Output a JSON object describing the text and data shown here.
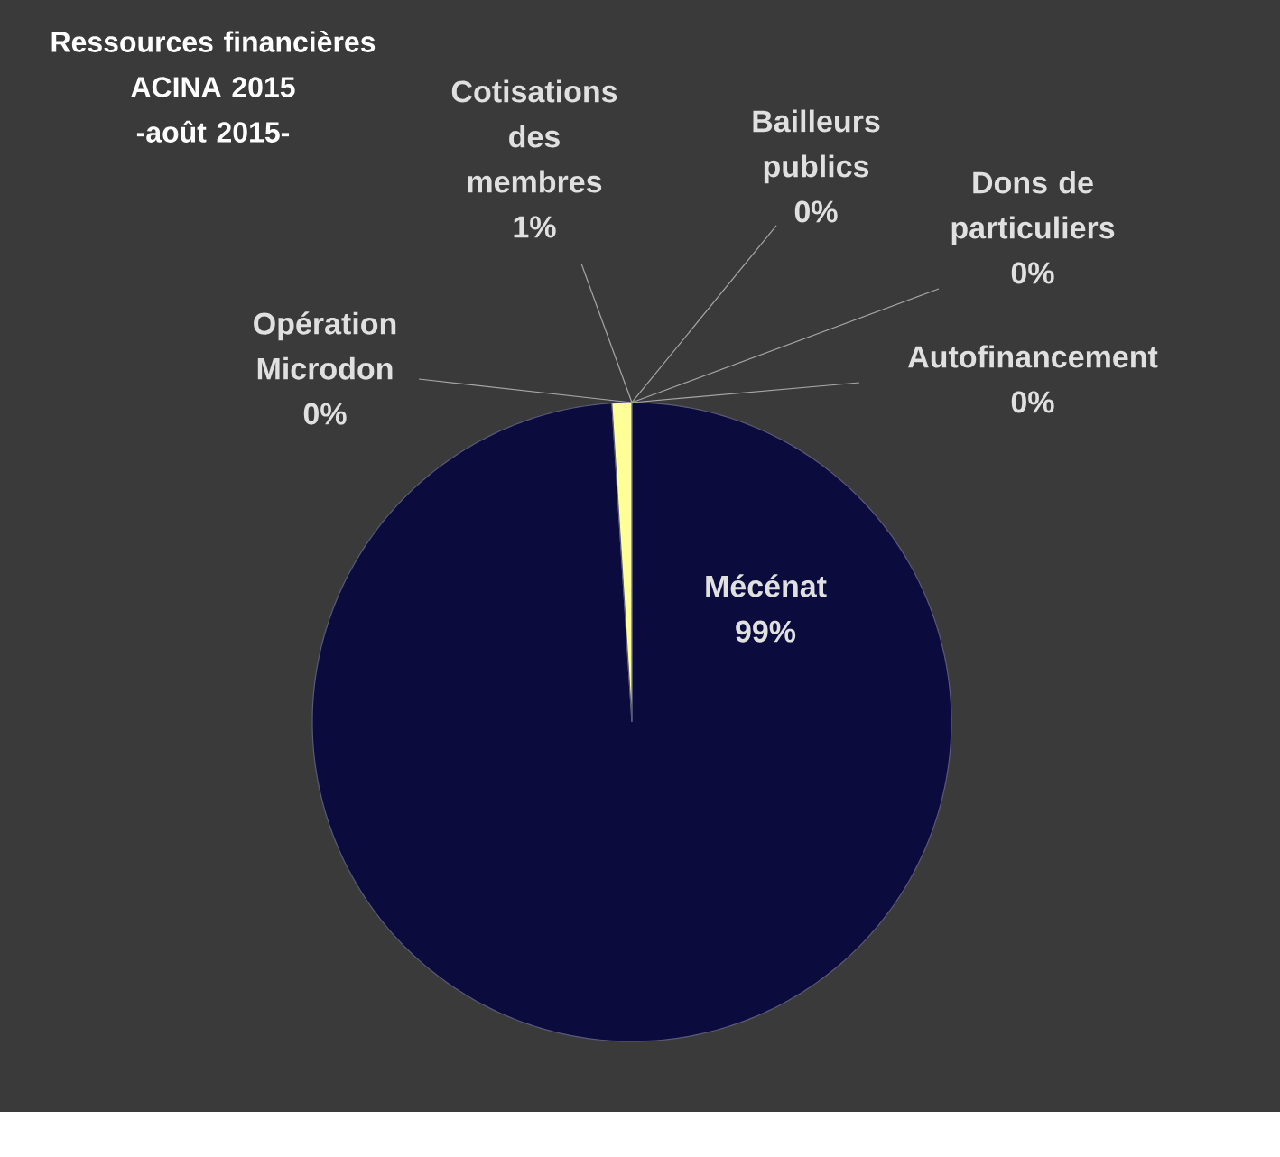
{
  "chart_data": {
    "type": "pie",
    "title": "Ressources financières ACINA 2015",
    "subtitle": "-août 2015-",
    "categories": [
      "Bailleurs publics",
      "Dons de particuliers",
      "Autofinancement",
      "Mécénat",
      "Opération Microdon",
      "Cotisations des membres"
    ],
    "values": [
      0,
      0,
      0,
      99,
      0,
      1
    ],
    "value_labels": [
      "0%",
      "0%",
      "0%",
      "99%",
      "0%",
      "1%"
    ],
    "colors": [
      "#4f81bd",
      "#c0504d",
      "#9bbb59",
      "#0b0b3d",
      "#4bacc6",
      "#ffff99"
    ]
  }
}
